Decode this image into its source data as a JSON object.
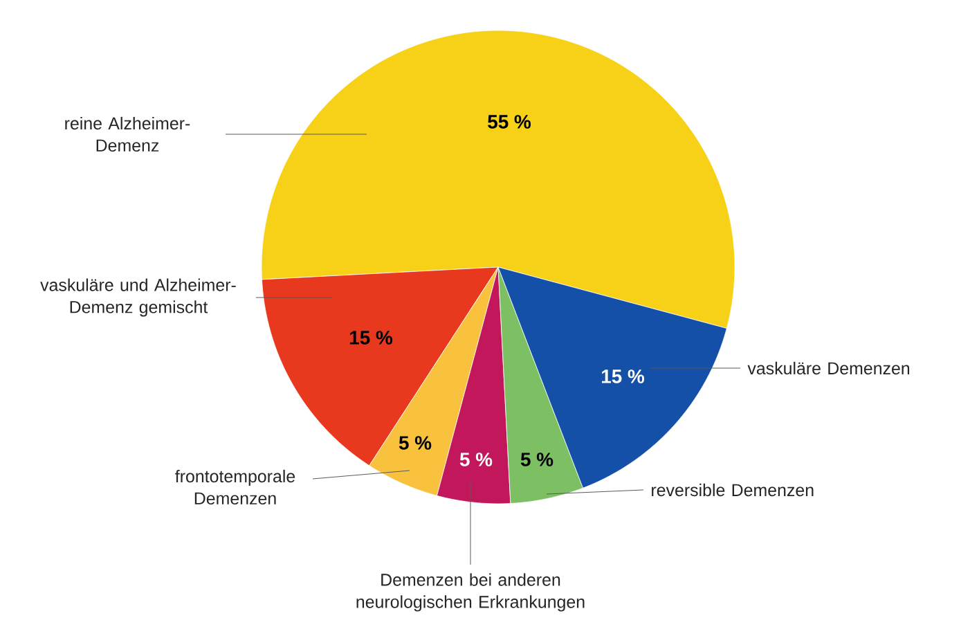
{
  "chart_data": {
    "type": "pie",
    "categories": [
      "reine Alzheimer-Demenz",
      "vaskuläre und Alzheimer-Demenz gemischt",
      "frontotemporale Demenzen",
      "Demenzen bei anderen neurologischen Erkrankungen",
      "reversible Demenzen",
      "vaskuläre Demenzen"
    ],
    "values": [
      55,
      15,
      5,
      5,
      5,
      15
    ],
    "colors": [
      "#f7d117",
      "#e8391e",
      "#f8c23e",
      "#c2185b",
      "#7cc063",
      "#1550a8"
    ],
    "value_labels": [
      "55 %",
      "15 %",
      "5 %",
      "5 %",
      "5 %",
      "15 %"
    ]
  }
}
